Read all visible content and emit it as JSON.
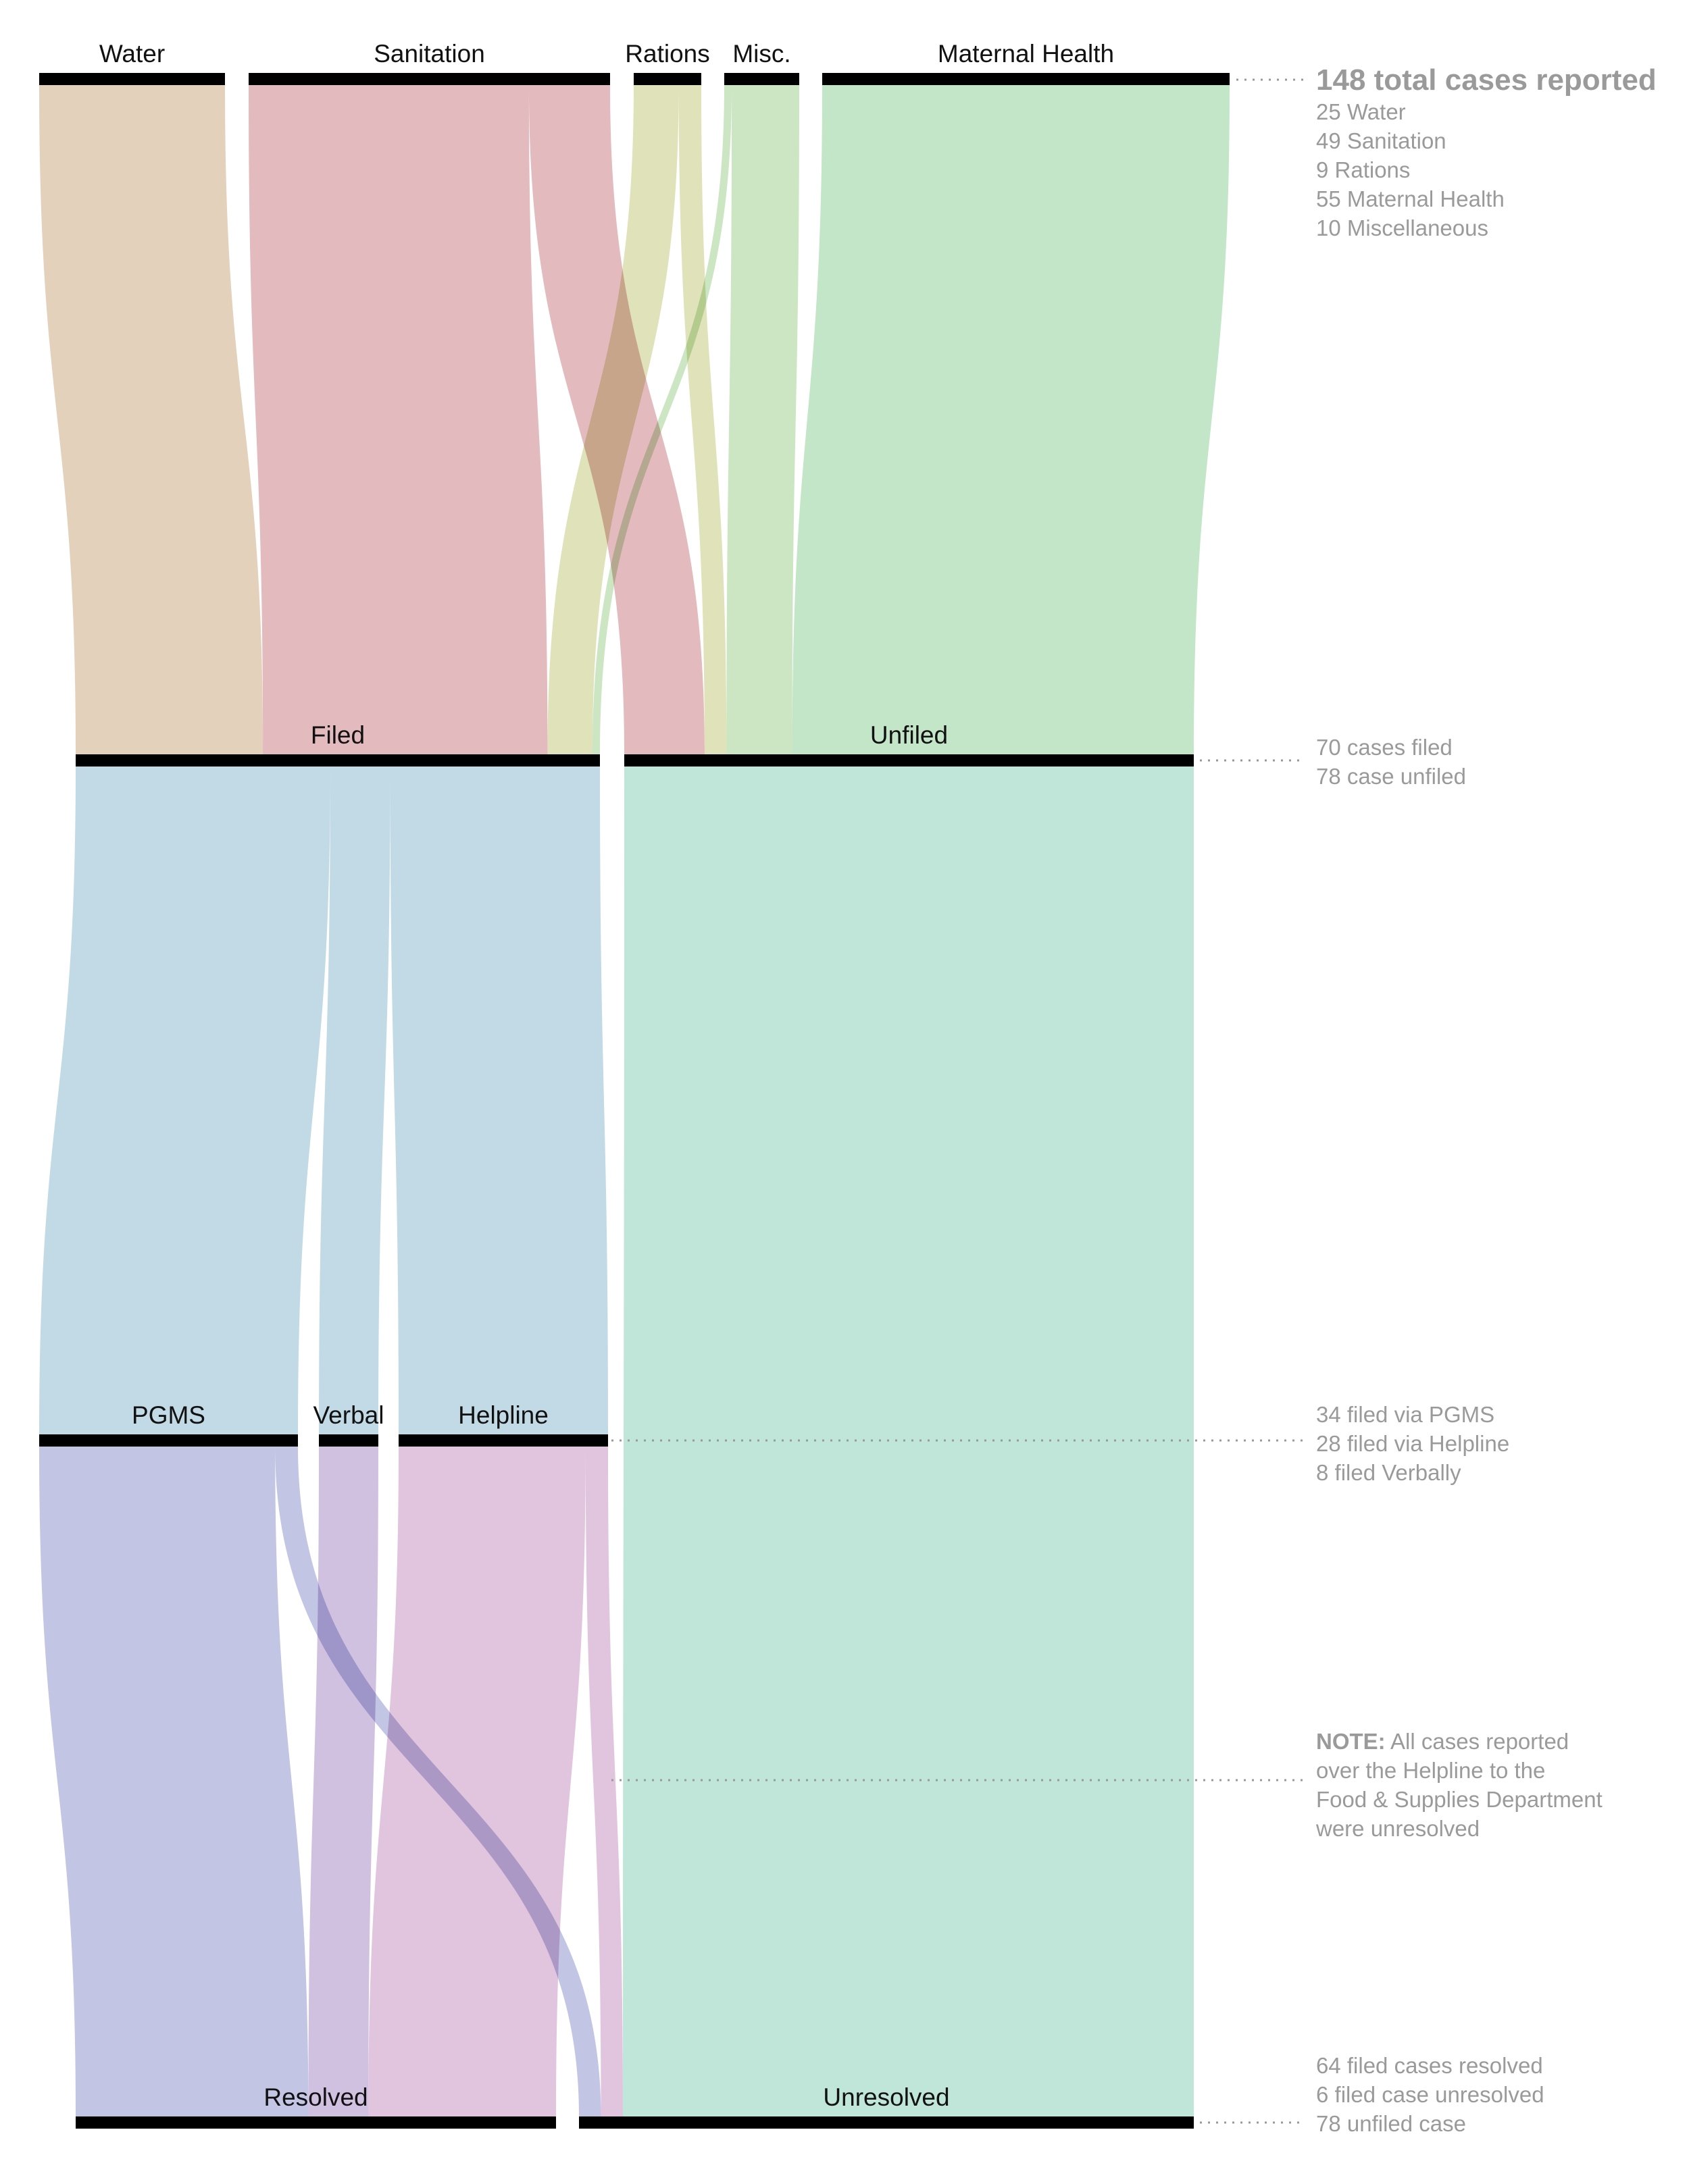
{
  "sources": [
    {
      "id": "water",
      "label": "Water"
    },
    {
      "id": "sanitation",
      "label": "Sanitation"
    },
    {
      "id": "rations",
      "label": "Rations"
    },
    {
      "id": "misc",
      "label": "Misc."
    },
    {
      "id": "maternal",
      "label": "Maternal Health"
    }
  ],
  "filing": [
    {
      "id": "filed",
      "label": "Filed"
    },
    {
      "id": "unfiled",
      "label": "Unfiled"
    }
  ],
  "channels": [
    {
      "id": "pgms",
      "label": "PGMS"
    },
    {
      "id": "verbal",
      "label": "Verbal"
    },
    {
      "id": "helpline",
      "label": "Helpline"
    }
  ],
  "outcomes": [
    {
      "id": "resolved",
      "label": "Resolved"
    },
    {
      "id": "unresolved",
      "label": "Unresolved"
    }
  ],
  "flows": [
    {
      "from": "water",
      "to": "filed",
      "value": 25,
      "color": "#dcc6ab"
    },
    {
      "from": "sanitation",
      "to": "filed",
      "value": 38,
      "color": "#dca9ad"
    },
    {
      "from": "sanitation",
      "to": "unfiled",
      "value": 11,
      "color": "#dca9ad"
    },
    {
      "from": "rations",
      "to": "filed",
      "value": 6,
      "color": "#d8dba9"
    },
    {
      "from": "rations",
      "to": "unfiled",
      "value": 3,
      "color": "#d8dba9"
    },
    {
      "from": "misc",
      "to": "filed",
      "value": 1,
      "color": "#bfe0b4"
    },
    {
      "from": "misc",
      "to": "unfiled",
      "value": 9,
      "color": "#bfe0b4"
    },
    {
      "from": "maternal",
      "to": "unfiled",
      "value": 55,
      "color": "#b4deba"
    },
    {
      "from": "filed",
      "to": "pgms",
      "value": 34,
      "color": "#b3d1df"
    },
    {
      "from": "filed",
      "to": "verbal",
      "value": 8,
      "color": "#b3d1df"
    },
    {
      "from": "filed",
      "to": "helpline",
      "value": 28,
      "color": "#b3d1df"
    },
    {
      "from": "unfiled",
      "to": "unresolved",
      "value": 78,
      "color": "#b0dfd0"
    },
    {
      "from": "pgms",
      "to": "resolved",
      "value": 31,
      "color": "#b3b7dc"
    },
    {
      "from": "pgms",
      "to": "unresolved",
      "value": 3,
      "color": "#b3b7dc"
    },
    {
      "from": "verbal",
      "to": "resolved",
      "value": 8,
      "color": "#c4b2da"
    },
    {
      "from": "helpline",
      "to": "resolved",
      "value": 25,
      "color": "#d9b6d6"
    },
    {
      "from": "helpline",
      "to": "unresolved",
      "value": 3,
      "color": "#d9b6d6"
    }
  ],
  "annotations": {
    "sources": {
      "headline": "148 total cases reported",
      "lines": [
        "25 Water",
        "49 Sanitation",
        "9 Rations",
        "55 Maternal Health",
        "10 Miscellaneous"
      ]
    },
    "filing": {
      "lines": [
        "70 cases filed",
        "78 case unfiled"
      ]
    },
    "channels": {
      "lines": [
        "34 filed via PGMS",
        "28 filed via Helpline",
        "8 filed Verbally"
      ]
    },
    "note": {
      "prefix": "NOTE:",
      "lines": [
        " All cases reported",
        "over the Helpline to the",
        "Food & Supplies Department",
        "were unresolved"
      ]
    },
    "outcomes": {
      "lines": [
        "64 filed cases resolved",
        "6 filed case unresolved",
        "78 unfiled case"
      ]
    }
  }
}
